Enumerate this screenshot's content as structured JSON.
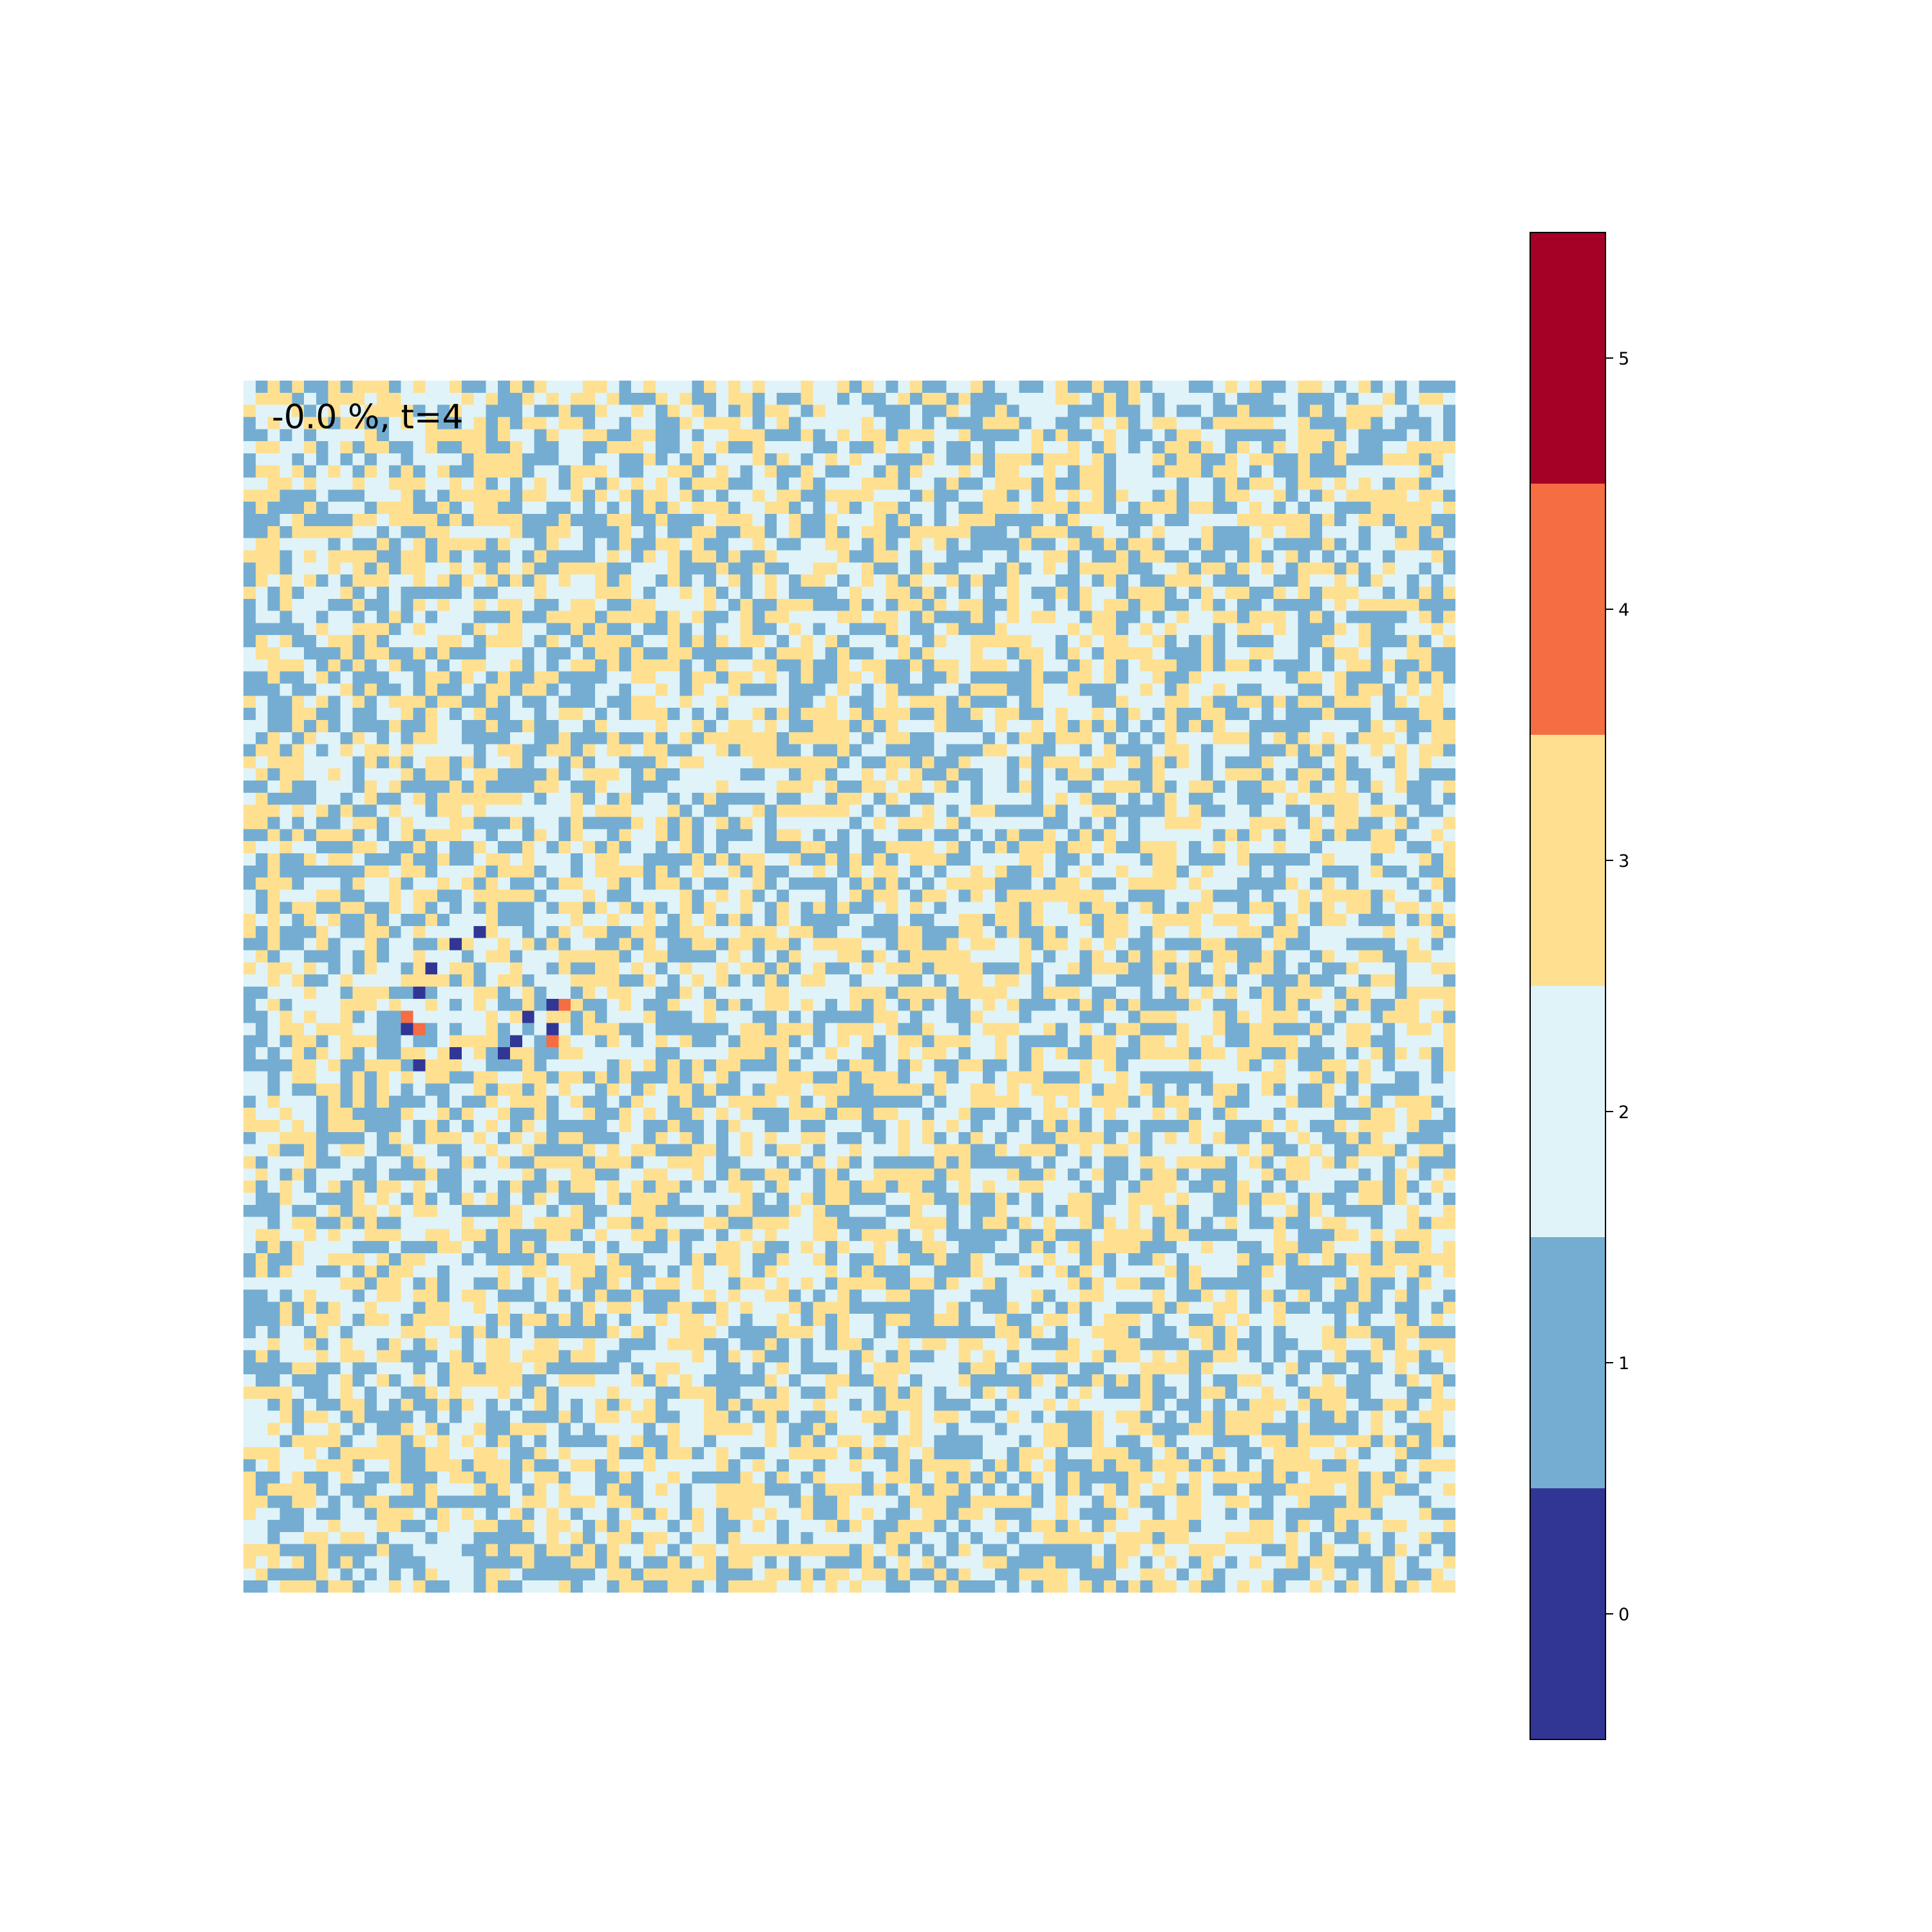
{
  "chart_data": {
    "type": "heatmap",
    "title": "",
    "annotation": "-0.0 %, t=4",
    "grid": false,
    "legend": "colorbar on right",
    "grid_size": [
      100,
      100
    ],
    "clim": [
      -0.5,
      5.5
    ],
    "colorbar": {
      "ticks": [
        0,
        1,
        2,
        3,
        4,
        5
      ],
      "tick_labels": [
        "0",
        "1",
        "2",
        "3",
        "4",
        "5"
      ],
      "colors": [
        "#313695",
        "#74add1",
        "#e0f3f8",
        "#fee090",
        "#f46d43",
        "#a50026"
      ]
    },
    "background_values": [
      1,
      2,
      3
    ],
    "special_cells": [
      {
        "row": 45,
        "col": 19,
        "value": 0
      },
      {
        "row": 46,
        "col": 17,
        "value": 0
      },
      {
        "row": 48,
        "col": 15,
        "value": 0
      },
      {
        "row": 50,
        "col": 14,
        "value": 0
      },
      {
        "row": 51,
        "col": 25,
        "value": 0
      },
      {
        "row": 51,
        "col": 26,
        "value": 4
      },
      {
        "row": 52,
        "col": 13,
        "value": 4
      },
      {
        "row": 52,
        "col": 23,
        "value": 0
      },
      {
        "row": 53,
        "col": 13,
        "value": 0
      },
      {
        "row": 53,
        "col": 14,
        "value": 4
      },
      {
        "row": 53,
        "col": 25,
        "value": 0
      },
      {
        "row": 54,
        "col": 22,
        "value": 0
      },
      {
        "row": 54,
        "col": 25,
        "value": 4
      },
      {
        "row": 55,
        "col": 17,
        "value": 0
      },
      {
        "row": 55,
        "col": 21,
        "value": 0
      },
      {
        "row": 56,
        "col": 14,
        "value": 0
      }
    ]
  }
}
